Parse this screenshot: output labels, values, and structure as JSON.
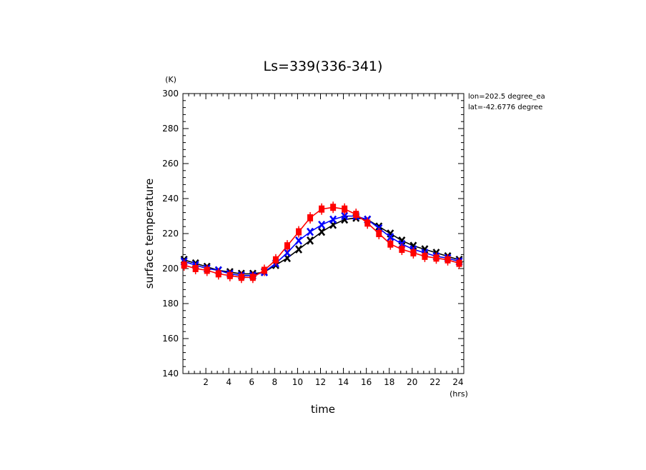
{
  "chart_data": {
    "type": "line",
    "title": "Ls=339(336-341)",
    "xlabel": "time",
    "ylabel": "surface temperature",
    "x_unit": "(hrs)",
    "y_unit": "(K)",
    "xlim": [
      0,
      24.5
    ],
    "ylim": [
      140,
      300
    ],
    "x_ticks": [
      2,
      4,
      6,
      8,
      10,
      12,
      14,
      16,
      18,
      20,
      22,
      24
    ],
    "y_ticks": [
      140,
      160,
      180,
      200,
      220,
      240,
      260,
      280,
      300
    ],
    "annotations": [
      "lon=202.5 degree_ea",
      "lat=-42.6776 degree"
    ],
    "grid": false,
    "series": [
      {
        "color": "#000000",
        "marker": "x",
        "x": [
          0.1,
          1.1,
          2.1,
          3.1,
          4.1,
          5.1,
          6.1,
          7.1,
          8.1,
          9.1,
          10.1,
          11.1,
          12.1,
          13.1,
          14.1,
          15.1,
          16.1,
          17.1,
          18.1,
          19.1,
          20.1,
          21.1,
          22.1,
          23.1,
          24.1
        ],
        "y": [
          205,
          203,
          201,
          199,
          198,
          197,
          197,
          198,
          202,
          206,
          211,
          216,
          221,
          225,
          228,
          229,
          228,
          224,
          220,
          216,
          213,
          211,
          209,
          207,
          205
        ]
      },
      {
        "color": "#0000ff",
        "marker": "x",
        "x": [
          0.1,
          1.1,
          2.1,
          3.1,
          4.1,
          5.1,
          6.1,
          7.1,
          8.1,
          9.1,
          10.1,
          11.1,
          12.1,
          13.1,
          14.1,
          15.1,
          16.1,
          17.1,
          18.1,
          19.1,
          20.1,
          21.1,
          22.1,
          23.1,
          24.1
        ],
        "y": [
          204,
          202,
          200,
          199,
          197,
          196,
          196,
          198,
          203,
          209,
          216,
          221,
          225,
          228,
          230,
          230,
          228,
          223,
          218,
          214,
          211,
          209,
          207,
          206,
          204
        ]
      },
      {
        "color": "#ff0000",
        "marker": "square",
        "x": [
          0.1,
          1.1,
          2.1,
          3.1,
          4.1,
          5.1,
          6.1,
          7.1,
          8.1,
          9.1,
          10.1,
          11.1,
          12.1,
          13.1,
          14.1,
          15.1,
          16.1,
          17.1,
          18.1,
          19.1,
          20.1,
          21.1,
          22.1,
          23.1,
          24.1
        ],
        "y": [
          202,
          200,
          199,
          197,
          196,
          195,
          195,
          199,
          205,
          213,
          221,
          229,
          234,
          235,
          234,
          231,
          226,
          220,
          214,
          211,
          209,
          207,
          206,
          205,
          203
        ]
      }
    ]
  }
}
